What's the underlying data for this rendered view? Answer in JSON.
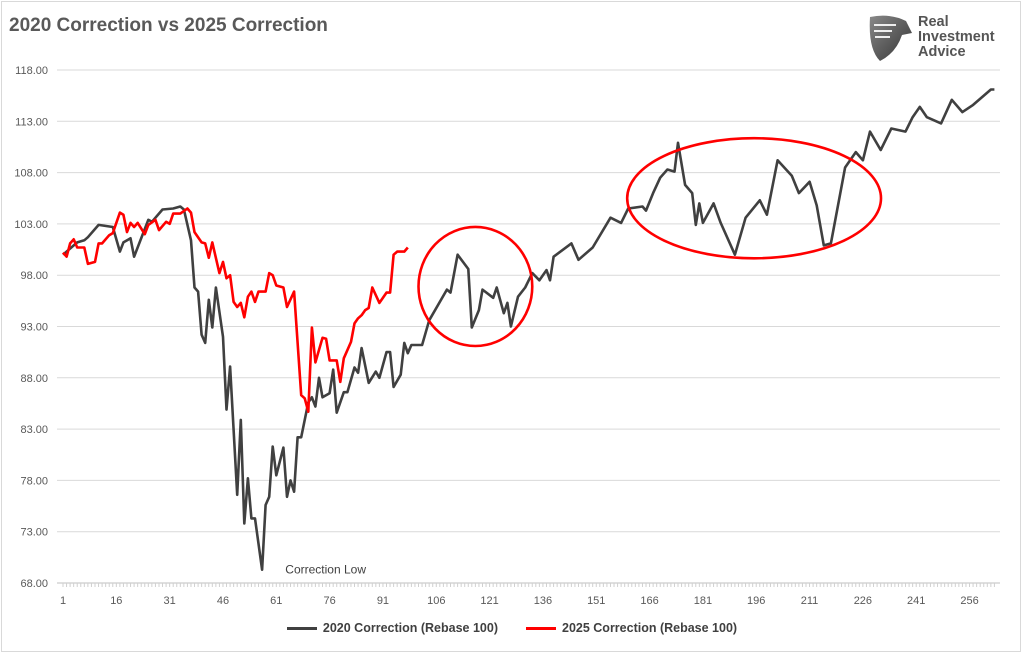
{
  "chart_data": {
    "type": "line",
    "title": "2020 Correction vs 2025 Correction",
    "xlabel": "",
    "ylabel": "",
    "xlim": [
      1,
      263
    ],
    "ylim": [
      68,
      118
    ],
    "x_ticks": [
      "1",
      "16",
      "31",
      "46",
      "61",
      "76",
      "91",
      "106",
      "121",
      "136",
      "151",
      "166",
      "181",
      "196",
      "211",
      "226",
      "241",
      "256"
    ],
    "y_ticks": [
      "118.00",
      "113.00",
      "108.00",
      "103.00",
      "98.00",
      "93.00",
      "88.00",
      "83.00",
      "78.00",
      "73.00",
      "68.00"
    ],
    "grid": true,
    "legend": "bottom",
    "series": [
      {
        "name": "2020 Correction (Rebase 100)",
        "color": "#404040",
        "points": [
          [
            1,
            100.0
          ],
          [
            5,
            101.2
          ],
          [
            7,
            101.4
          ],
          [
            8,
            101.7
          ],
          [
            11,
            102.9
          ],
          [
            15,
            102.7
          ],
          [
            17,
            100.3
          ],
          [
            18,
            101.2
          ],
          [
            20,
            101.6
          ],
          [
            21,
            99.8
          ],
          [
            25,
            103.4
          ],
          [
            26,
            103.2
          ],
          [
            29,
            104.4
          ],
          [
            32,
            104.5
          ],
          [
            34,
            104.7
          ],
          [
            35,
            104.4
          ],
          [
            37,
            101.4
          ],
          [
            38,
            96.8
          ],
          [
            39,
            96.4
          ],
          [
            40,
            92.2
          ],
          [
            41,
            91.4
          ],
          [
            42,
            95.6
          ],
          [
            43,
            92.9
          ],
          [
            44,
            96.8
          ],
          [
            46,
            92.0
          ],
          [
            47,
            84.9
          ],
          [
            48,
            89.1
          ],
          [
            50,
            76.6
          ],
          [
            51,
            83.9
          ],
          [
            52,
            73.8
          ],
          [
            53,
            78.2
          ],
          [
            54,
            74.3
          ],
          [
            55,
            74.3
          ],
          [
            57,
            69.3
          ],
          [
            58,
            75.6
          ],
          [
            59,
            76.4
          ],
          [
            60,
            81.3
          ],
          [
            61,
            78.5
          ],
          [
            63,
            81.2
          ],
          [
            64,
            76.4
          ],
          [
            65,
            78.0
          ],
          [
            66,
            76.9
          ],
          [
            67,
            82.2
          ],
          [
            68,
            82.2
          ],
          [
            70,
            85.6
          ],
          [
            71,
            86.1
          ],
          [
            72,
            85.2
          ],
          [
            73,
            88.0
          ],
          [
            74,
            86.1
          ],
          [
            76,
            86.5
          ],
          [
            77,
            88.8
          ],
          [
            78,
            84.6
          ],
          [
            80,
            86.6
          ],
          [
            81,
            86.6
          ],
          [
            83,
            89.0
          ],
          [
            84,
            88.5
          ],
          [
            85,
            90.9
          ],
          [
            87,
            87.5
          ],
          [
            89,
            88.6
          ],
          [
            90,
            88.0
          ],
          [
            92,
            90.5
          ],
          [
            93,
            90.5
          ],
          [
            94,
            87.1
          ],
          [
            96,
            88.3
          ],
          [
            97,
            91.4
          ],
          [
            98,
            90.4
          ],
          [
            99,
            91.2
          ],
          [
            102,
            91.2
          ],
          [
            104,
            93.6
          ],
          [
            109,
            96.6
          ],
          [
            110,
            96.3
          ],
          [
            112,
            100.0
          ],
          [
            115,
            98.6
          ],
          [
            116,
            92.9
          ],
          [
            118,
            94.6
          ],
          [
            119,
            96.6
          ],
          [
            122,
            95.8
          ],
          [
            123,
            96.8
          ],
          [
            125,
            94.3
          ],
          [
            126,
            95.3
          ],
          [
            127,
            93.0
          ],
          [
            129,
            95.9
          ],
          [
            131,
            96.8
          ],
          [
            133,
            98.2
          ],
          [
            135,
            97.5
          ],
          [
            137,
            98.5
          ],
          [
            138,
            97.5
          ],
          [
            139,
            99.8
          ],
          [
            144,
            101.1
          ],
          [
            146,
            99.5
          ],
          [
            150,
            100.7
          ],
          [
            155,
            103.6
          ],
          [
            158,
            103.1
          ],
          [
            160,
            104.5
          ],
          [
            164,
            104.7
          ],
          [
            165,
            104.3
          ],
          [
            167,
            106.0
          ],
          [
            169,
            107.5
          ],
          [
            171,
            108.3
          ],
          [
            173,
            108.1
          ],
          [
            174,
            110.9
          ],
          [
            176,
            106.8
          ],
          [
            178,
            106.0
          ],
          [
            179,
            102.9
          ],
          [
            180,
            105.0
          ],
          [
            181,
            103.1
          ],
          [
            184,
            105.0
          ],
          [
            186,
            103.1
          ],
          [
            190,
            100.0
          ],
          [
            193,
            103.6
          ],
          [
            197,
            105.3
          ],
          [
            199,
            103.9
          ],
          [
            202,
            109.2
          ],
          [
            206,
            107.7
          ],
          [
            208,
            106.0
          ],
          [
            211,
            107.1
          ],
          [
            213,
            104.8
          ],
          [
            215,
            100.9
          ],
          [
            217,
            101.1
          ],
          [
            221,
            108.5
          ],
          [
            224,
            110.0
          ],
          [
            226,
            109.2
          ],
          [
            228,
            112.0
          ],
          [
            231,
            110.2
          ],
          [
            234,
            112.3
          ],
          [
            238,
            112.0
          ],
          [
            240,
            113.4
          ],
          [
            242,
            114.4
          ],
          [
            244,
            113.4
          ],
          [
            248,
            112.8
          ],
          [
            251,
            115.1
          ],
          [
            254,
            113.9
          ],
          [
            257,
            114.6
          ],
          [
            262,
            116.1
          ],
          [
            263,
            116.1
          ]
        ]
      },
      {
        "name": "2025 Correction (Rebase 100)",
        "color": "#ff0000",
        "points": [
          [
            1,
            100.2
          ],
          [
            2,
            99.8
          ],
          [
            3,
            101.1
          ],
          [
            4,
            101.5
          ],
          [
            5,
            100.7
          ],
          [
            7,
            100.7
          ],
          [
            8,
            99.1
          ],
          [
            10,
            99.3
          ],
          [
            11,
            101.1
          ],
          [
            12,
            101.1
          ],
          [
            14,
            101.9
          ],
          [
            15,
            102.1
          ],
          [
            17,
            104.1
          ],
          [
            18,
            103.9
          ],
          [
            19,
            102.2
          ],
          [
            20,
            103.1
          ],
          [
            21,
            102.7
          ],
          [
            22,
            103.1
          ],
          [
            24,
            102.0
          ],
          [
            25,
            102.9
          ],
          [
            27,
            103.4
          ],
          [
            28,
            102.4
          ],
          [
            30,
            103.2
          ],
          [
            31,
            103.0
          ],
          [
            32,
            104.0
          ],
          [
            34,
            104.0
          ],
          [
            36,
            104.5
          ],
          [
            37,
            104.1
          ],
          [
            38,
            102.2
          ],
          [
            40,
            101.2
          ],
          [
            41,
            101.1
          ],
          [
            42,
            99.7
          ],
          [
            43,
            101.2
          ],
          [
            45,
            98.2
          ],
          [
            46,
            99.3
          ],
          [
            47,
            97.7
          ],
          [
            48,
            98.0
          ],
          [
            49,
            95.4
          ],
          [
            50,
            94.9
          ],
          [
            51,
            95.3
          ],
          [
            52,
            93.9
          ],
          [
            53,
            95.9
          ],
          [
            54,
            96.4
          ],
          [
            55,
            95.4
          ],
          [
            56,
            96.4
          ],
          [
            58,
            96.4
          ],
          [
            59,
            98.2
          ],
          [
            60,
            98.0
          ],
          [
            61,
            97.0
          ],
          [
            63,
            96.8
          ],
          [
            64,
            94.9
          ],
          [
            66,
            96.4
          ],
          [
            68,
            86.3
          ],
          [
            69,
            86.0
          ],
          [
            70,
            84.7
          ],
          [
            71,
            92.9
          ],
          [
            72,
            89.5
          ],
          [
            74,
            91.9
          ],
          [
            75,
            91.8
          ],
          [
            76,
            89.7
          ],
          [
            78,
            89.7
          ],
          [
            79,
            87.6
          ],
          [
            80,
            89.9
          ],
          [
            82,
            91.5
          ],
          [
            83,
            93.3
          ],
          [
            84,
            93.8
          ],
          [
            85,
            94.1
          ],
          [
            86,
            94.6
          ],
          [
            87,
            94.8
          ],
          [
            88,
            96.8
          ],
          [
            90,
            95.3
          ],
          [
            92,
            96.3
          ],
          [
            93,
            96.3
          ],
          [
            94,
            100.0
          ],
          [
            95,
            100.3
          ],
          [
            97,
            100.3
          ],
          [
            98,
            100.7
          ]
        ]
      }
    ],
    "annotations": [
      {
        "type": "text",
        "text": "Correction Low",
        "x": 61,
        "y": 69.3
      },
      {
        "type": "ellipse",
        "color": "#ff0000",
        "cx": 117,
        "cy": 96.9,
        "rx": 16,
        "ry": 5.8
      },
      {
        "type": "ellipse",
        "color": "#ff0000",
        "cx": 195.4,
        "cy": 105.5,
        "rx": 35.7,
        "ry": 5.85
      }
    ]
  },
  "logo": {
    "text": "Real Investment Advice"
  },
  "colors": {
    "grid": "#d9d9d9",
    "text": "#595959"
  }
}
